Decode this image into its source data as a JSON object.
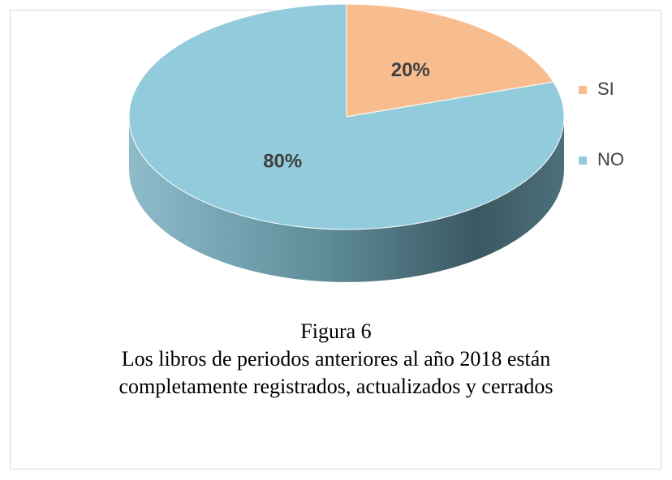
{
  "chart_data": {
    "type": "pie",
    "categories": [
      "SI",
      "NO"
    ],
    "values": [
      20,
      80
    ],
    "value_labels": [
      "20%",
      "80%"
    ],
    "colors": [
      "#f8bd8f",
      "#92cbdb"
    ],
    "legend": "right",
    "caption_label": "Figura 6",
    "title": "Los libros de periodos anteriores al año 2018 están completamente registrados, actualizados y cerrados"
  }
}
